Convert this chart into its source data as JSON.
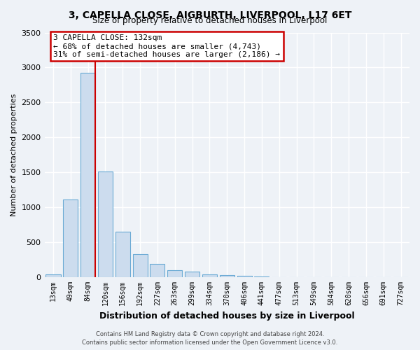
{
  "title": "3, CAPELLA CLOSE, AIGBURTH, LIVERPOOL, L17 6ET",
  "subtitle": "Size of property relative to detached houses in Liverpool",
  "xlabel": "Distribution of detached houses by size in Liverpool",
  "ylabel": "Number of detached properties",
  "bar_labels": [
    "13sqm",
    "49sqm",
    "84sqm",
    "120sqm",
    "156sqm",
    "192sqm",
    "227sqm",
    "263sqm",
    "299sqm",
    "334sqm",
    "370sqm",
    "406sqm",
    "441sqm",
    "477sqm",
    "513sqm",
    "549sqm",
    "584sqm",
    "620sqm",
    "656sqm",
    "691sqm",
    "727sqm"
  ],
  "bar_values": [
    40,
    1110,
    2920,
    1510,
    650,
    330,
    195,
    100,
    80,
    45,
    35,
    20,
    15,
    5,
    0,
    0,
    0,
    0,
    0,
    0,
    0
  ],
  "bar_color": "#ccdcee",
  "bar_edgecolor": "#6aaad4",
  "vline_color": "#cc0000",
  "ylim": [
    0,
    3500
  ],
  "yticks": [
    0,
    500,
    1000,
    1500,
    2000,
    2500,
    3000,
    3500
  ],
  "annotation_title": "3 CAPELLA CLOSE: 132sqm",
  "annotation_line1": "← 68% of detached houses are smaller (4,743)",
  "annotation_line2": "31% of semi-detached houses are larger (2,186) →",
  "annotation_box_facecolor": "#ffffff",
  "annotation_box_edgecolor": "#cc0000",
  "footer_line1": "Contains HM Land Registry data © Crown copyright and database right 2024.",
  "footer_line2": "Contains public sector information licensed under the Open Government Licence v3.0.",
  "background_color": "#eef2f7",
  "grid_color": "#ffffff"
}
